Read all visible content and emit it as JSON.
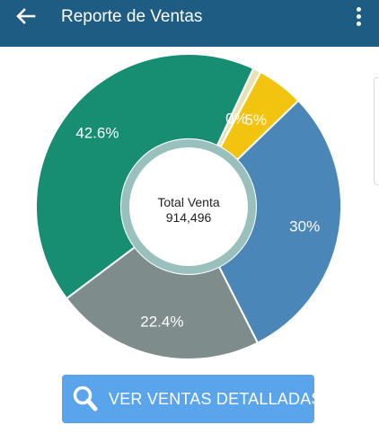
{
  "header": {
    "title": "Reporte de Ventas",
    "back_icon": "arrow-left-icon",
    "menu_icon": "more-vert-icon",
    "background": "#1f5c84"
  },
  "chart_data": {
    "type": "pie",
    "style": "donut",
    "center_label": "Total Venta",
    "center_value": "914,496",
    "slices": [
      {
        "label": "30%",
        "value": 30,
        "color": "#4a86b8"
      },
      {
        "label": "22.4%",
        "value": 22.4,
        "color": "#7f8c8c"
      },
      {
        "label": "42.6%",
        "value": 42.6,
        "color": "#178d72"
      },
      {
        "label": "0%",
        "value": 0,
        "color": "#e7e2b5"
      },
      {
        "label": "5%",
        "value": 5,
        "color": "#f2c40f"
      }
    ]
  },
  "action": {
    "label": "VER VENTAS DETALLADAS",
    "icon": "search-icon",
    "background": "#5aa4ec"
  }
}
